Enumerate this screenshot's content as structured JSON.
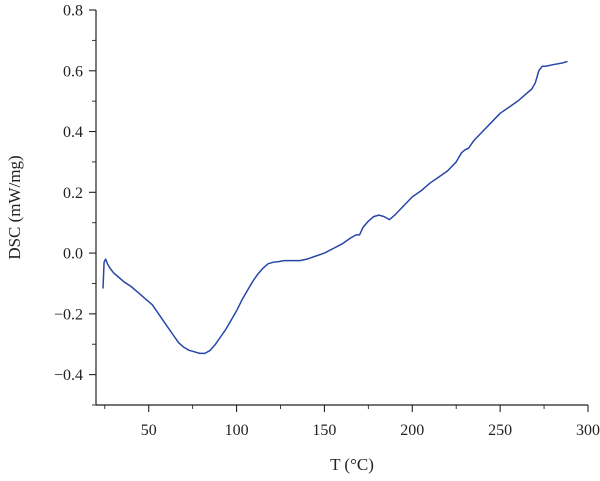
{
  "chart_data": {
    "type": "line",
    "xlabel": "T (°C)",
    "ylabel": "DSC (mW/mg)",
    "xlim": [
      20,
      300
    ],
    "ylim": [
      -0.5,
      0.8
    ],
    "xticks": [
      50,
      100,
      150,
      200,
      250,
      300
    ],
    "yticks": [
      -0.4,
      -0.2,
      0.0,
      0.2,
      0.4,
      0.6,
      0.8
    ],
    "xtick_labels": [
      "50",
      "100",
      "150",
      "200",
      "250",
      "300"
    ],
    "ytick_labels": [
      "−0.4",
      "−0.2",
      "0.0",
      "0.2",
      "0.4",
      "0.6",
      "0.8"
    ],
    "grid": false,
    "line_color": "#2846a8",
    "series": [
      {
        "x": [
          24,
          24.6,
          25.5,
          26.5,
          28,
          30,
          33,
          36,
          40,
          44,
          48,
          52,
          55,
          58,
          61,
          64,
          67,
          70,
          73,
          76,
          79,
          82,
          85,
          88,
          91,
          94,
          97,
          100,
          103,
          106,
          109,
          112,
          115,
          118,
          121,
          124,
          127,
          130,
          133,
          136,
          140,
          145,
          150,
          155,
          160,
          165,
          168,
          170,
          172,
          175,
          178,
          181,
          184,
          187,
          190,
          195,
          200,
          205,
          210,
          215,
          220,
          225,
          228,
          230,
          232,
          235,
          240,
          245,
          250,
          255,
          260,
          265,
          268,
          270,
          272,
          274,
          276,
          280,
          285,
          288
        ],
        "y": [
          -0.115,
          -0.03,
          -0.02,
          -0.035,
          -0.05,
          -0.065,
          -0.08,
          -0.095,
          -0.11,
          -0.13,
          -0.15,
          -0.17,
          -0.195,
          -0.22,
          -0.245,
          -0.27,
          -0.295,
          -0.31,
          -0.32,
          -0.325,
          -0.33,
          -0.33,
          -0.32,
          -0.3,
          -0.275,
          -0.25,
          -0.22,
          -0.19,
          -0.155,
          -0.125,
          -0.095,
          -0.07,
          -0.05,
          -0.035,
          -0.03,
          -0.028,
          -0.025,
          -0.025,
          -0.025,
          -0.025,
          -0.02,
          -0.01,
          0.0,
          0.015,
          0.03,
          0.05,
          0.06,
          0.06,
          0.085,
          0.105,
          0.12,
          0.125,
          0.12,
          0.11,
          0.125,
          0.155,
          0.185,
          0.205,
          0.23,
          0.25,
          0.27,
          0.3,
          0.33,
          0.34,
          0.345,
          0.37,
          0.4,
          0.43,
          0.46,
          0.48,
          0.5,
          0.525,
          0.54,
          0.56,
          0.6,
          0.615,
          0.615,
          0.62,
          0.625,
          0.63
        ]
      }
    ]
  }
}
